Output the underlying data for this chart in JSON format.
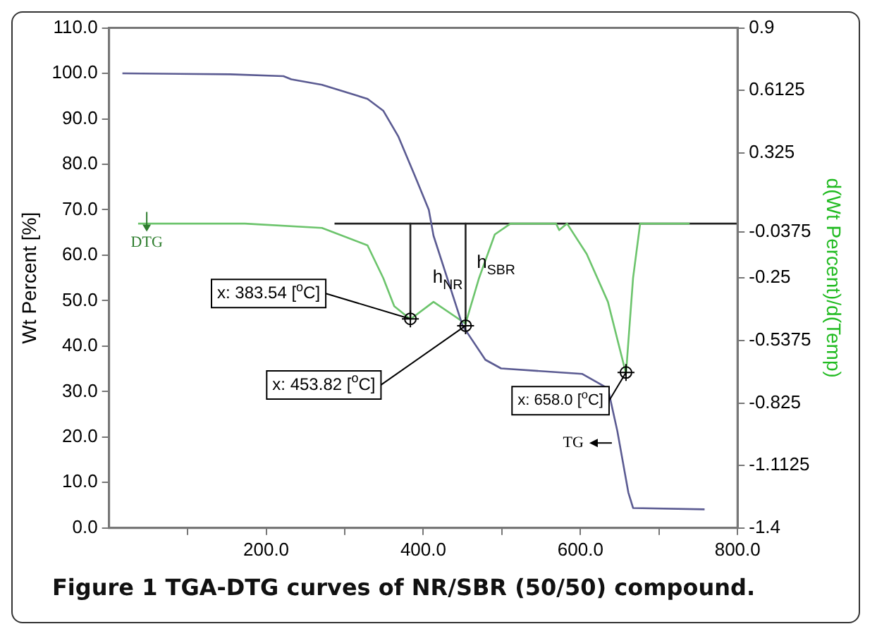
{
  "chart_data": {
    "type": "line",
    "title": "Figure 1 TGA-DTG curves of NR/SBR (50/50) compound.",
    "ylabel": "Wt Percent [%]",
    "y2label": "d(Wt Percent)/d(Temp)",
    "xlim": [
      0,
      800
    ],
    "xticks": [
      {
        "value": 100,
        "label": null
      },
      {
        "value": 200,
        "label": "200.0"
      },
      {
        "value": 300,
        "label": null
      },
      {
        "value": 400,
        "label": "400.0"
      },
      {
        "value": 500,
        "label": null
      },
      {
        "value": 600,
        "label": "600.0"
      },
      {
        "value": 700,
        "label": null
      },
      {
        "value": 800,
        "label": "800.0"
      }
    ],
    "ylim": [
      0,
      110
    ],
    "yticks": [
      {
        "value": 0,
        "label": "0.0"
      },
      {
        "value": 10,
        "label": "10.0"
      },
      {
        "value": 20,
        "label": "20.0"
      },
      {
        "value": 30,
        "label": "30.0"
      },
      {
        "value": 40,
        "label": "40.0"
      },
      {
        "value": 50,
        "label": "50.0"
      },
      {
        "value": 60,
        "label": "60.0"
      },
      {
        "value": 70,
        "label": "70.0"
      },
      {
        "value": 80,
        "label": "80.0"
      },
      {
        "value": 90,
        "label": "90.0"
      },
      {
        "value": 100,
        "label": "100.0"
      },
      {
        "value": 110,
        "label": "110.0"
      }
    ],
    "y2lim": [
      -1.4,
      0.9
    ],
    "y2ticks": [
      0.9,
      0.6125,
      0.325,
      -0.0375,
      -0.25,
      -0.5375,
      -0.825,
      -1.1125,
      -1.4
    ],
    "grid": false,
    "legend": false,
    "marker": "none",
    "series": [
      {
        "type": "line",
        "color": "#5b5b92",
        "x": [
          17,
          154,
          222,
          232,
          271,
          329,
          349,
          368,
          388,
          407,
          413,
          450,
          479,
          499,
          602,
          635,
          647,
          661,
          667,
          758
        ],
        "values": [
          100,
          99.8,
          99.4,
          98.7,
          97.5,
          94.4,
          91.8,
          86.2,
          78,
          70,
          64.3,
          44.5,
          37,
          35.1,
          33.9,
          30.7,
          21.3,
          7.8,
          4.4,
          4.1
        ]
      },
      {
        "type": "line",
        "axis": "y2",
        "color": "#6cc46c",
        "x": [
          37,
          173,
          271,
          329,
          349,
          363,
          383.54,
          413,
          453.82,
          471,
          491,
          511,
          569,
          573,
          583,
          608,
          635,
          658,
          667,
          676,
          739
        ],
        "values": [
          0,
          0,
          -0.02,
          -0.1,
          -0.25,
          -0.38,
          -0.44,
          -0.36,
          -0.46,
          -0.25,
          -0.05,
          0,
          0,
          -0.03,
          0,
          -0.14,
          -0.36,
          -0.69,
          -0.25,
          0,
          0
        ]
      },
      {
        "type": "line",
        "axis": "y2",
        "color": "#222222",
        "x": [
          287,
          800
        ],
        "values": [
          0,
          0
        ]
      },
      {
        "type": "line",
        "axis": "y2",
        "color": "#222222",
        "x": [
          383.54,
          383.54
        ],
        "values": [
          0,
          -0.44
        ]
      },
      {
        "type": "line",
        "axis": "y2",
        "color": "#222222",
        "x": [
          453.82,
          453.82
        ],
        "values": [
          0,
          -0.46
        ]
      }
    ],
    "annotations": [
      "DTG",
      "h$_{NR}$",
      "h$_{SBR}$",
      {
        "text": "x: 383.54 [$^{o}$C]",
        "x": 383.54,
        "y": 46
      },
      {
        "text": "x: 453.82 [$^{o}$C]",
        "x": 453.82,
        "y": 44.5
      },
      {
        "text": "x: 658.0 [$^{o}$C]",
        "x": 658,
        "y": 34.2
      },
      "TG"
    ]
  }
}
